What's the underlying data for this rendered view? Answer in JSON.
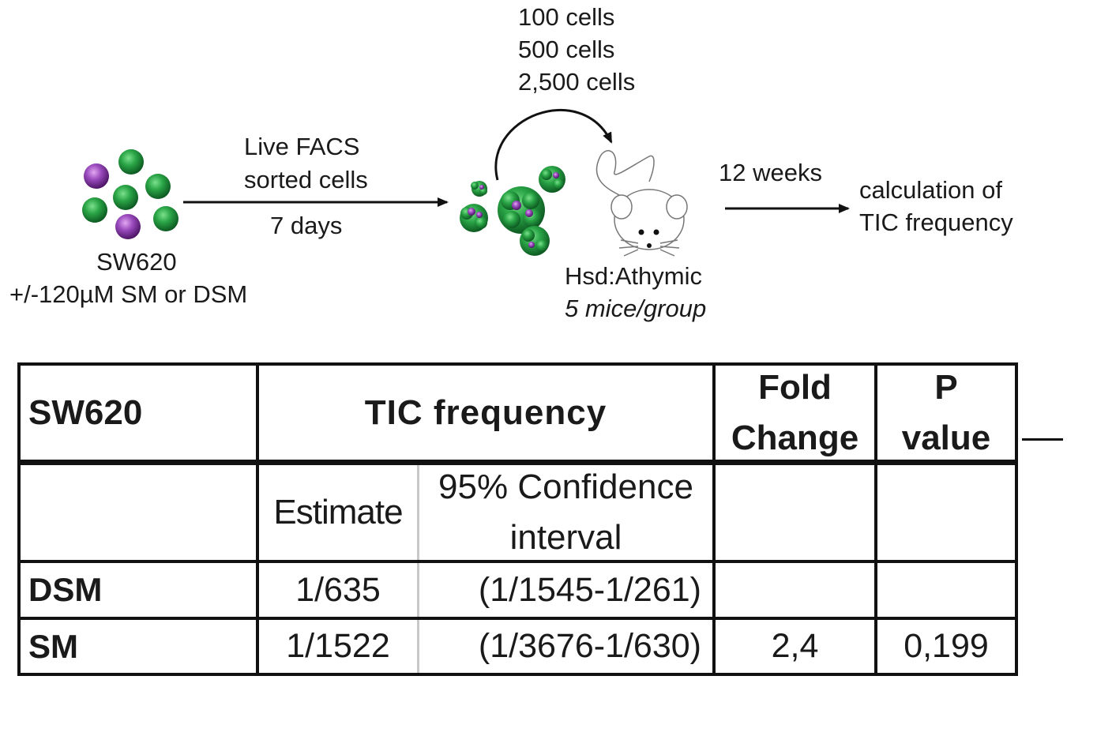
{
  "diagram": {
    "cell_counts": [
      "100 cells",
      "500 cells",
      "2,500 cells"
    ],
    "step1": {
      "label_line1": "Live FACS",
      "label_line2": "sorted cells",
      "duration": "7 days"
    },
    "source": {
      "line1": "SW620",
      "line2": "+/-120µM SM or DSM"
    },
    "mouse": {
      "strain": "Hsd:Athymic",
      "group": "5 mice/group"
    },
    "step2": {
      "duration": "12 weeks"
    },
    "result": {
      "line1": "calculation of",
      "line2": "TIC frequency"
    },
    "colors": {
      "green_cell": "#1f9a3c",
      "purple_cell": "#8c3fa6",
      "arrow": "#111111"
    }
  },
  "table": {
    "header": {
      "col1": "SW620",
      "col2": "TIC frequency",
      "col3_line1": "Fold",
      "col3_line2": "Change",
      "col4_line1": "P",
      "col4_line2": "value"
    },
    "subheader": {
      "estimate": "Estimate",
      "ci_line1": "95% Confidence",
      "ci_line2": "interval"
    },
    "rows": [
      {
        "label": "DSM",
        "estimate": "1/635",
        "ci": "(1/1545-1/261)",
        "fold": "",
        "p": ""
      },
      {
        "label": "SM",
        "estimate": "1/1522",
        "ci": "(1/3676-1/630)",
        "fold": "2,4",
        "p": "0,199"
      }
    ]
  }
}
